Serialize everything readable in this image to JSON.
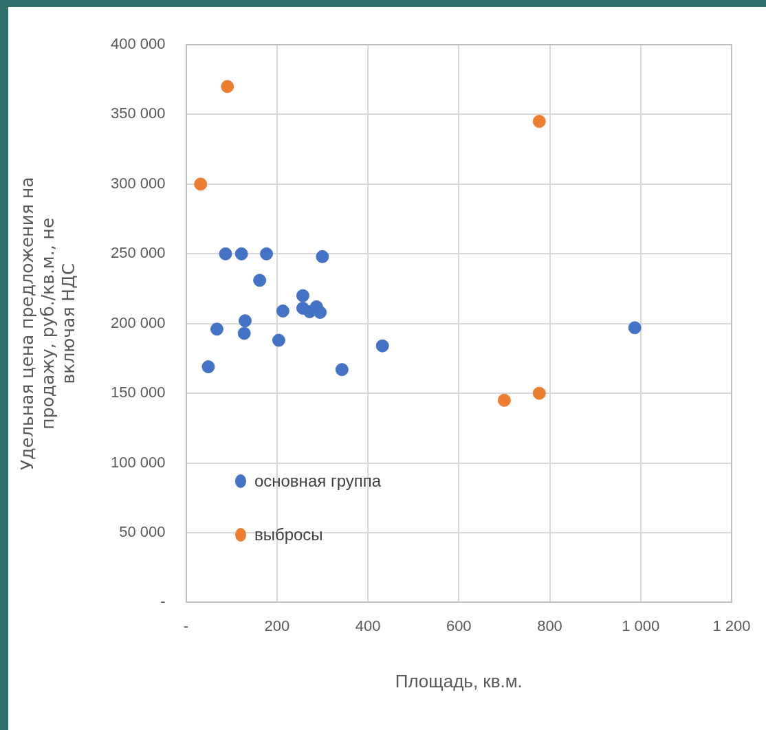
{
  "chart_data": {
    "type": "scatter",
    "xlabel": "Площадь, кв.м.",
    "ylabel": "Удельная цена предложения на продажу, руб./кв.м., не включая НДС",
    "xlim": [
      0,
      1200
    ],
    "xticks": [
      {
        "value": 0,
        "label": "-"
      },
      200,
      400,
      600,
      800,
      {
        "value": 1000,
        "label": "1 000"
      },
      {
        "value": 1200,
        "label": "1 200"
      }
    ],
    "ylim": [
      0,
      400000
    ],
    "yticks": [
      {
        "value": 0,
        "label": "-"
      },
      {
        "value": 50000,
        "label": "50 000"
      },
      {
        "value": 100000,
        "label": "100 000"
      },
      {
        "value": 150000,
        "label": "150 000"
      },
      {
        "value": 200000,
        "label": "200 000"
      },
      {
        "value": 250000,
        "label": "250 000"
      },
      {
        "value": 300000,
        "label": "300 000"
      },
      {
        "value": 350000,
        "label": "350 000"
      },
      {
        "value": 400000,
        "label": "400 000"
      }
    ],
    "grid": true,
    "legend": "bottom left",
    "marker": "circle",
    "series": [
      {
        "name": "основная группа",
        "color": "#4472c4",
        "x": [
          49,
          68,
          87,
          122,
          177,
          162,
          130,
          128,
          213,
          204,
          257,
          257,
          272,
          287,
          295,
          300,
          343,
          432,
          987
        ],
        "values": [
          169000,
          196000,
          250000,
          250000,
          250000,
          231000,
          202000,
          193000,
          209000,
          188000,
          220000,
          211000,
          208500,
          212000,
          208000,
          248000,
          167000,
          184000,
          197000
        ]
      },
      {
        "name": "выбросы",
        "color": "#ed7d31",
        "x": [
          32,
          91,
          777,
          700,
          777
        ],
        "values": [
          300000,
          370000,
          345000,
          145000,
          150000
        ]
      }
    ]
  }
}
